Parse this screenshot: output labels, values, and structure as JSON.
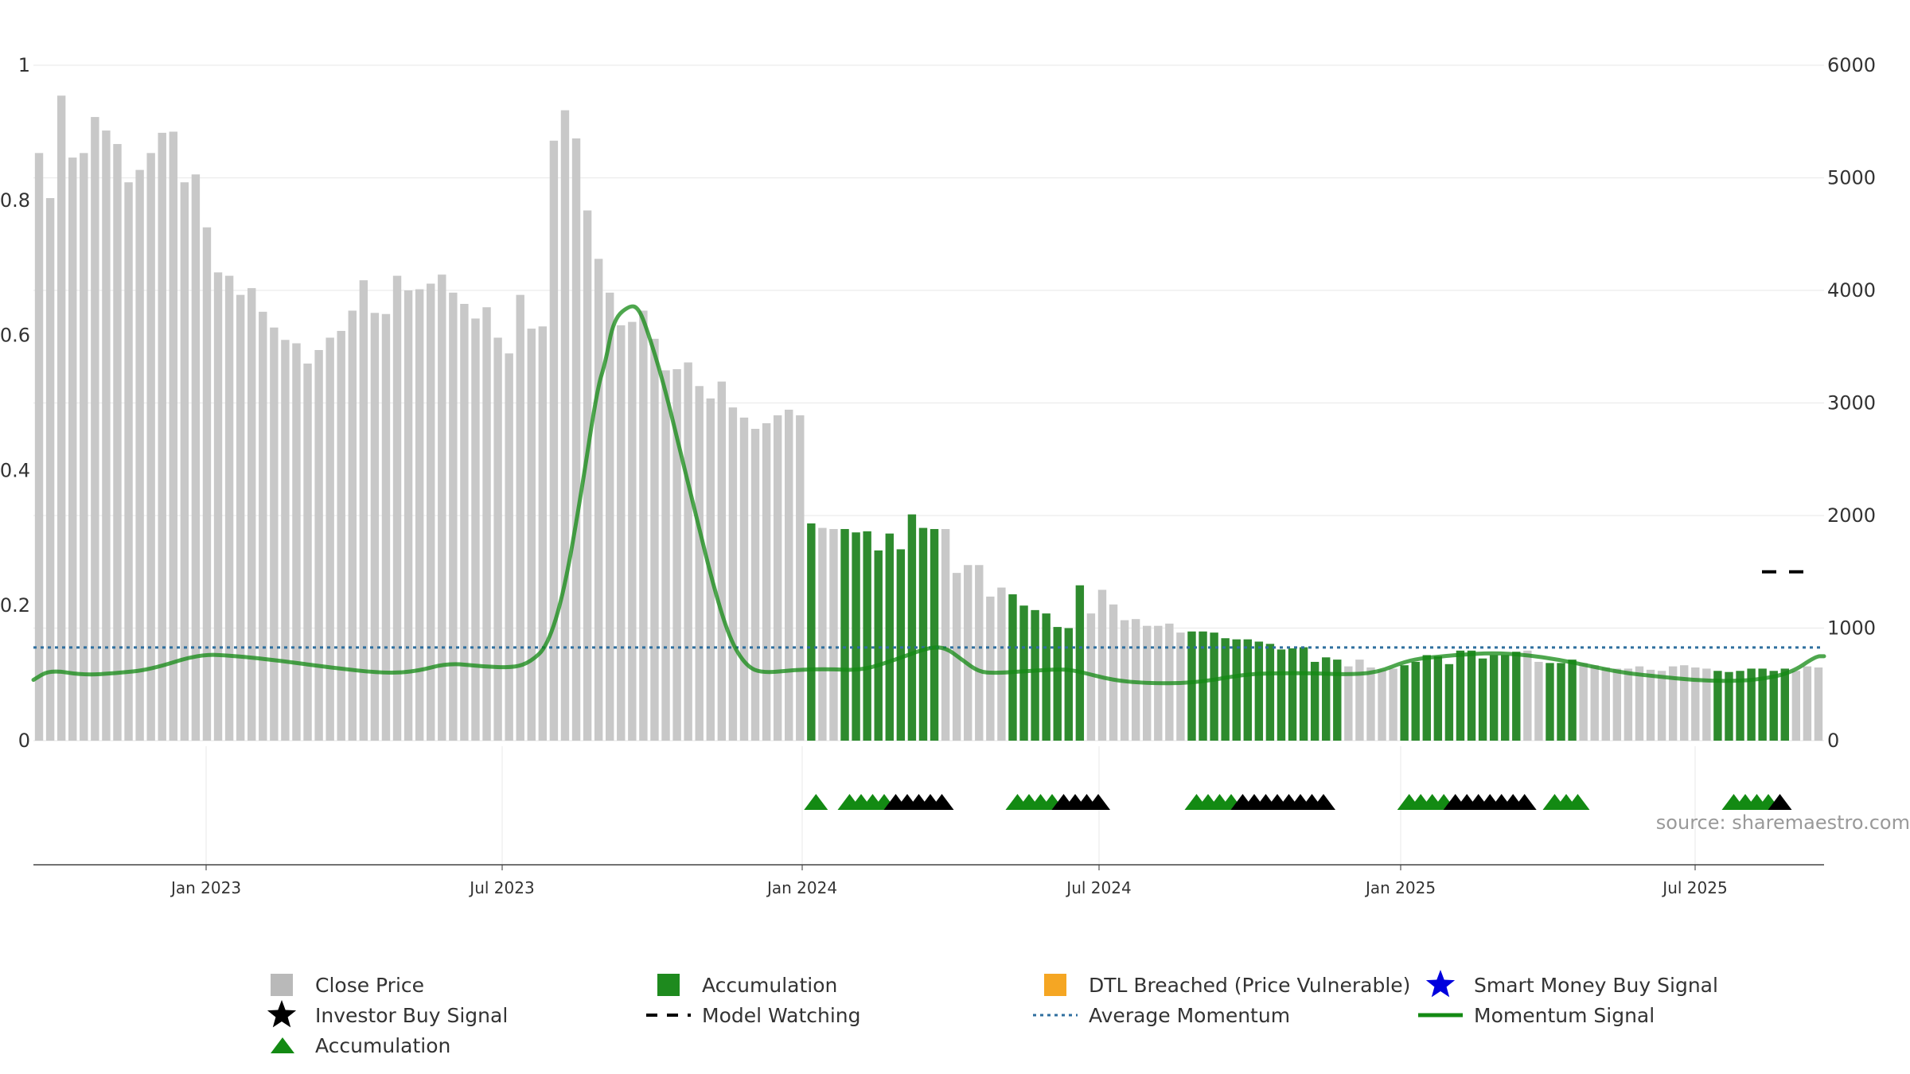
{
  "chart_data": {
    "type": "bar",
    "title": "",
    "xlabel": "",
    "ylabel": "",
    "y2label": "",
    "ylim": [
      0,
      1
    ],
    "y2lim": [
      0,
      6000
    ],
    "y_ticks": [
      0,
      0.2,
      0.4,
      0.6,
      0.8,
      1
    ],
    "y2_ticks": [
      0,
      1000,
      2000,
      3000,
      4000,
      5000,
      6000
    ],
    "x_ticks": [
      "Jan 2023",
      "Jul 2023",
      "Jan 2024",
      "Jul 2024",
      "Jan 2025",
      "Jul 2025"
    ],
    "watermark": "source: sharemaestro.com",
    "grid": true,
    "legend_position": "bottom",
    "legend": [
      {
        "label": "Close Price",
        "symbol": "square",
        "color": "#b9b9b9"
      },
      {
        "label": "Accumulation",
        "symbol": "square",
        "color": "#1e8a1e"
      },
      {
        "label": "DTL Breached (Price Vulnerable)",
        "symbol": "square",
        "color": "#f5a623"
      },
      {
        "label": "Smart Money Buy Signal",
        "symbol": "star",
        "color": "#0000dd"
      },
      {
        "label": "Investor Buy Signal",
        "symbol": "star",
        "color": "#000000"
      },
      {
        "label": "Model Watching",
        "symbol": "dash",
        "color": "#000000"
      },
      {
        "label": "Average Momentum",
        "symbol": "dotted",
        "color": "#2f6f9f"
      },
      {
        "label": "Momentum Signal",
        "symbol": "line",
        "color": "#138a13"
      },
      {
        "label": "Accumulation",
        "symbol": "triangle",
        "color": "#138a13"
      }
    ],
    "colors": {
      "close_price": "#c8c8c8",
      "accumulation": "#2e8b2e",
      "momentum": "#138a13",
      "average_momentum": "#2f6f9f",
      "triangle_green": "#138a13",
      "triangle_black": "#000000"
    },
    "close_price": [
      5220,
      4820,
      5730,
      5180,
      5220,
      5540,
      5420,
      5300,
      4960,
      5070,
      5220,
      5400,
      5410,
      4960,
      5030,
      4560,
      4160,
      4130,
      3960,
      4020,
      3810,
      3670,
      3560,
      3530,
      3350,
      3470,
      3580,
      3640,
      3820,
      4090,
      3800,
      3790,
      4130,
      4000,
      4010,
      4060,
      4140,
      3980,
      3880,
      3750,
      3850,
      3580,
      3440,
      3960,
      3660,
      3680,
      5330,
      5600,
      5350,
      4710,
      4280,
      3980,
      3690,
      3720,
      3820,
      3570,
      3290,
      3300,
      3360,
      3150,
      3040,
      3190,
      2960,
      2870,
      2770,
      2820,
      2890,
      2940,
      2890,
      1930,
      1890,
      1880,
      1880,
      1850,
      1860,
      1690,
      1840,
      1700,
      2010,
      1890,
      1880,
      1880,
      1490,
      1560,
      1560,
      1280,
      1360,
      1300,
      1200,
      1160,
      1130,
      1010,
      1000,
      1380,
      1130,
      1340,
      1210,
      1070,
      1080,
      1020,
      1020,
      1040,
      960,
      970,
      970,
      960,
      910,
      900,
      900,
      880,
      860,
      810,
      820,
      830,
      700,
      740,
      720,
      660,
      720,
      650,
      630,
      640,
      670,
      700,
      760,
      750,
      680,
      800,
      800,
      730,
      760,
      760,
      790,
      800,
      700,
      690,
      690,
      720,
      690,
      670,
      650,
      640,
      640,
      660,
      630,
      620,
      660,
      670,
      650,
      640,
      620,
      610,
      620,
      640,
      640,
      620,
      640,
      620,
      660,
      650
    ],
    "accumulation_ranges": [
      [
        69,
        69
      ],
      [
        72,
        80
      ],
      [
        87,
        93
      ],
      [
        103,
        116
      ],
      [
        122,
        132
      ],
      [
        135,
        137
      ],
      [
        150,
        156
      ]
    ],
    "momentum_signal": [
      [
        0,
        0.09
      ],
      [
        2,
        0.105
      ],
      [
        6,
        0.097
      ],
      [
        10,
        0.1
      ],
      [
        14,
        0.105
      ],
      [
        20,
        0.128
      ],
      [
        24,
        0.126
      ],
      [
        30,
        0.118
      ],
      [
        36,
        0.108
      ],
      [
        42,
        0.1
      ],
      [
        46,
        0.102
      ],
      [
        50,
        0.115
      ],
      [
        54,
        0.11
      ],
      [
        58,
        0.108
      ],
      [
        60,
        0.117
      ],
      [
        62,
        0.14
      ],
      [
        64,
        0.22
      ],
      [
        66,
        0.36
      ],
      [
        68,
        0.52
      ],
      [
        69,
        0.56
      ],
      [
        70,
        0.625
      ],
      [
        72,
        0.645
      ],
      [
        73,
        0.64
      ],
      [
        74,
        0.61
      ],
      [
        76,
        0.53
      ],
      [
        78,
        0.43
      ],
      [
        80,
        0.33
      ],
      [
        82,
        0.23
      ],
      [
        84,
        0.15
      ],
      [
        86,
        0.11
      ],
      [
        88,
        0.1
      ],
      [
        92,
        0.105
      ],
      [
        96,
        0.106
      ],
      [
        100,
        0.104
      ],
      [
        104,
        0.12
      ],
      [
        108,
        0.138
      ],
      [
        110,
        0.138
      ],
      [
        112,
        0.12
      ],
      [
        114,
        0.102
      ],
      [
        116,
        0.1
      ],
      [
        120,
        0.103
      ],
      [
        124,
        0.106
      ],
      [
        126,
        0.103
      ],
      [
        130,
        0.09
      ],
      [
        134,
        0.085
      ],
      [
        140,
        0.085
      ],
      [
        146,
        0.098
      ],
      [
        150,
        0.1
      ],
      [
        154,
        0.1
      ],
      [
        158,
        0.098
      ],
      [
        162,
        0.1
      ],
      [
        166,
        0.12
      ],
      [
        170,
        0.125
      ],
      [
        172,
        0.127
      ],
      [
        176,
        0.13
      ],
      [
        180,
        0.127
      ],
      [
        184,
        0.12
      ],
      [
        188,
        0.11
      ],
      [
        192,
        0.1
      ],
      [
        196,
        0.095
      ],
      [
        200,
        0.09
      ],
      [
        204,
        0.088
      ],
      [
        208,
        0.09
      ],
      [
        212,
        0.1
      ],
      [
        215,
        0.125
      ],
      [
        216,
        0.125
      ]
    ],
    "average_momentum": 0.138,
    "model_watching_level": 1500,
    "accumulation_triangles": [
      {
        "start": 69,
        "green": 1,
        "black": 0
      },
      {
        "start": 72,
        "green": 4,
        "black": 5
      },
      {
        "start": 87,
        "green": 4,
        "black": 4
      },
      {
        "start": 103,
        "green": 4,
        "black": 8
      },
      {
        "start": 122,
        "green": 4,
        "black": 7
      },
      {
        "start": 135,
        "green": 3,
        "black": 0
      },
      {
        "start": 151,
        "green": 4,
        "black": 1
      }
    ]
  }
}
